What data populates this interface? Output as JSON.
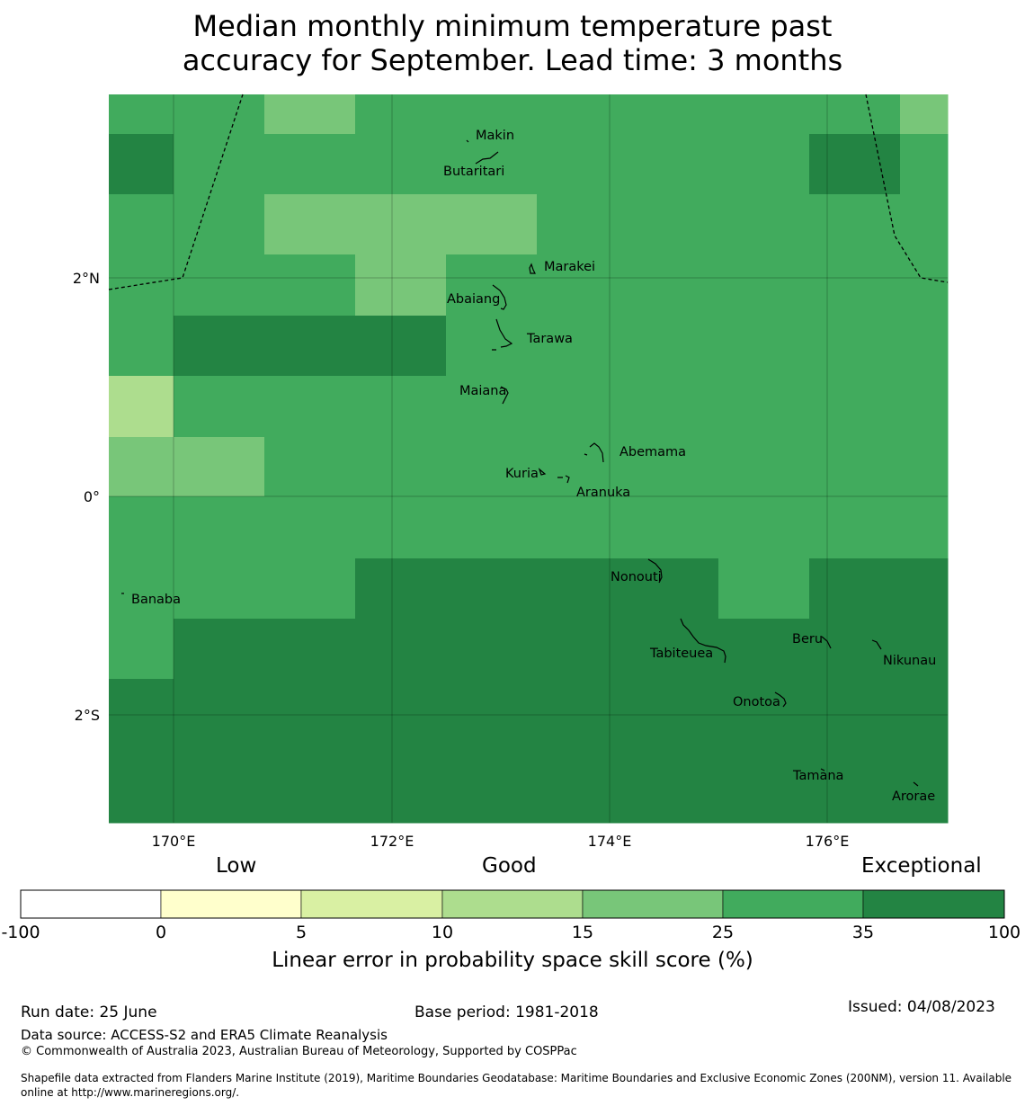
{
  "header": {
    "title_line1": "Median monthly minimum temperature past",
    "title_line2": "accuracy for September. Lead time: 3 months"
  },
  "map": {
    "lon_ticks": [
      "170°E",
      "172°E",
      "174°E",
      "176°E"
    ],
    "lat_ticks": [
      "2°N",
      "0°",
      "2°S"
    ],
    "islands": [
      "Makin",
      "Butaritari",
      "Marakei",
      "Abaiang",
      "Tarawa",
      "Maiana",
      "Abemama",
      "Kuria",
      "Aranuka",
      "Nonouti",
      "Banaba",
      "Beru",
      "Tabiteuea",
      "Nikunau",
      "Onotoa",
      "Tamana",
      "Arorae"
    ],
    "colors": {
      "exceptional": "#238443",
      "good_high": "#41ab5d",
      "good_low": "#78c679",
      "fair": "#addd8e",
      "low_mid": "#d9f0a3",
      "low": "#ffffcc",
      "none": "#ffffff"
    }
  },
  "legend": {
    "categories": [
      "Low",
      "Good",
      "Exceptional"
    ],
    "ticks": [
      "-100",
      "0",
      "5",
      "10",
      "15",
      "25",
      "35",
      "100"
    ],
    "label": "Linear error in probability space skill score (%)"
  },
  "footer": {
    "run_date": "Run date: 25 June",
    "base_period": "Base period: 1981-2018",
    "issued": "Issued: 04/08/2023",
    "data_source": "Data source: ACCESS-S2 and ERA5 Climate Reanalysis",
    "copyright": "© Commonwealth of Australia 2023, Australian Bureau of Meteorology, Supported by COSPPac",
    "shapefile_line1": "Shapefile data extracted from Flanders Marine Institute (2019), Maritime Boundaries Geodatabase: Maritime Boundaries and Exclusive Economic Zones (200NM), version 11. Available",
    "shapefile_line2": "online at http://www.marineregions.org/."
  }
}
